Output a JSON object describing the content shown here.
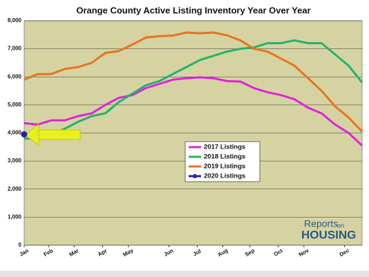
{
  "chart_data": {
    "type": "line",
    "title": "Orange County Active Listing Inventory Year Over Year",
    "x": [
      0,
      1,
      2,
      3,
      4,
      5,
      6,
      7,
      8,
      9,
      10,
      11,
      12,
      13,
      14,
      15,
      16,
      17,
      18,
      19,
      20,
      21,
      22,
      23,
      24,
      25
    ],
    "xlim": [
      0,
      25
    ],
    "xticks": [
      {
        "value": 0,
        "label": "Jan"
      },
      {
        "value": 1.8,
        "label": "Feb"
      },
      {
        "value": 3.7,
        "label": "Mar"
      },
      {
        "value": 5.8,
        "label": "Apr"
      },
      {
        "value": 7.7,
        "label": "May"
      },
      {
        "value": 10.7,
        "label": "Jun"
      },
      {
        "value": 12.8,
        "label": "Jul"
      },
      {
        "value": 14.7,
        "label": "Aug"
      },
      {
        "value": 16.7,
        "label": "Sep"
      },
      {
        "value": 18.8,
        "label": "Oct"
      },
      {
        "value": 20.7,
        "label": "Nov"
      },
      {
        "value": 23.7,
        "label": "Dec"
      }
    ],
    "ylim": [
      0,
      8000
    ],
    "yticks": [
      0,
      {
        "value": 1000,
        "label": "1,000"
      },
      {
        "value": 2000,
        "label": "2,000"
      },
      {
        "value": 3000,
        "label": "3,000"
      },
      {
        "value": 4000,
        "label": "4,000"
      },
      {
        "value": 5000,
        "label": "5,000"
      },
      {
        "value": 6000,
        "label": "6,000"
      },
      {
        "value": 7000,
        "label": "7,000"
      },
      {
        "value": 8000,
        "label": "8,000"
      }
    ],
    "grid": true,
    "legend": "center",
    "series": [
      {
        "name": "2017 Listings",
        "color": "#e020e0",
        "values": [
          4350,
          4300,
          4450,
          4450,
          4600,
          4700,
          5000,
          5250,
          5350,
          5600,
          5750,
          5900,
          5950,
          5980,
          5950,
          5850,
          5830,
          5600,
          5450,
          5350,
          5200,
          4900,
          4700,
          4300,
          4000,
          3550
        ]
      },
      {
        "name": "2018 Listings",
        "color": "#1fb36b",
        "values": [
          3800,
          3800,
          3950,
          4150,
          4400,
          4600,
          4700,
          5100,
          5400,
          5700,
          5850,
          6100,
          6350,
          6600,
          6750,
          6900,
          7000,
          7050,
          7200,
          7200,
          7300,
          7200,
          7200,
          6800,
          6400,
          5800
        ]
      },
      {
        "name": "2019 Listings",
        "color": "#e8731c",
        "values": [
          5900,
          6100,
          6100,
          6280,
          6350,
          6500,
          6850,
          6920,
          7150,
          7400,
          7450,
          7470,
          7580,
          7550,
          7580,
          7480,
          7300,
          7000,
          6900,
          6650,
          6400,
          5950,
          5500,
          4950,
          4550,
          4050
        ]
      },
      {
        "name": "2020 Listings",
        "color": "#2a1ea0",
        "values": [
          3950,
          null,
          null,
          null,
          null,
          null,
          null,
          null,
          null,
          null,
          null,
          null,
          null,
          null,
          null,
          null,
          null,
          null,
          null,
          null,
          null,
          null,
          null,
          null,
          null,
          null
        ]
      }
    ],
    "logo": {
      "top": "Reports",
      "small": "on",
      "bottom": "HOUSING"
    }
  }
}
